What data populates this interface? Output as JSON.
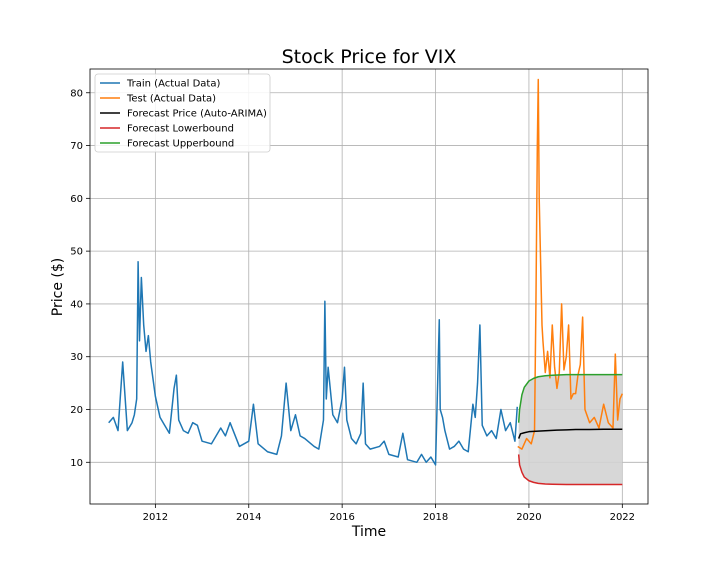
{
  "chart_data": {
    "type": "line",
    "title": "Stock Price for VIX",
    "xlabel": "Time",
    "ylabel": "Price ($)",
    "xlim": [
      2010.6,
      2022.55
    ],
    "ylim": [
      2.1,
      84.5
    ],
    "xticks": [
      2012,
      2014,
      2016,
      2018,
      2020,
      2022
    ],
    "yticks": [
      10,
      20,
      30,
      40,
      50,
      60,
      70,
      80
    ],
    "grid": true,
    "legend_position": "top-left",
    "series": [
      {
        "name": "Train (Actual Data)",
        "color": "#1f77b4",
        "style": "line",
        "x": [
          2011.0,
          2011.1,
          2011.2,
          2011.3,
          2011.4,
          2011.5,
          2011.55,
          2011.6,
          2011.63,
          2011.66,
          2011.7,
          2011.75,
          2011.8,
          2011.85,
          2011.9,
          2012.0,
          2012.1,
          2012.2,
          2012.3,
          2012.4,
          2012.45,
          2012.5,
          2012.6,
          2012.7,
          2012.8,
          2012.9,
          2013.0,
          2013.2,
          2013.4,
          2013.5,
          2013.6,
          2013.8,
          2014.0,
          2014.1,
          2014.2,
          2014.4,
          2014.6,
          2014.7,
          2014.8,
          2014.9,
          2015.0,
          2015.1,
          2015.2,
          2015.4,
          2015.5,
          2015.6,
          2015.63,
          2015.66,
          2015.7,
          2015.8,
          2015.9,
          2016.0,
          2016.05,
          2016.1,
          2016.2,
          2016.3,
          2016.4,
          2016.45,
          2016.5,
          2016.6,
          2016.8,
          2016.9,
          2017.0,
          2017.2,
          2017.3,
          2017.4,
          2017.6,
          2017.7,
          2017.8,
          2017.9,
          2018.0,
          2018.08,
          2018.1,
          2018.15,
          2018.2,
          2018.3,
          2018.4,
          2018.5,
          2018.6,
          2018.7,
          2018.8,
          2018.85,
          2018.9,
          2018.95,
          2019.0,
          2019.1,
          2019.2,
          2019.3,
          2019.4,
          2019.5,
          2019.6,
          2019.7,
          2019.75
        ],
        "y": [
          17.5,
          18.5,
          16.0,
          29.0,
          16.0,
          17.5,
          19.0,
          22.0,
          48.0,
          33.0,
          45.0,
          36.0,
          31.0,
          34.0,
          29.0,
          22.5,
          18.5,
          17.0,
          15.5,
          24.0,
          26.5,
          18.0,
          16.0,
          15.5,
          17.5,
          17.0,
          14.0,
          13.5,
          16.5,
          15.0,
          17.5,
          13.0,
          14.0,
          21.0,
          13.5,
          12.0,
          11.5,
          15.0,
          25.0,
          16.0,
          19.0,
          15.0,
          14.5,
          13.0,
          12.5,
          18.0,
          40.5,
          22.0,
          28.0,
          19.0,
          17.5,
          22.0,
          28.0,
          18.0,
          14.5,
          13.5,
          15.5,
          25.0,
          13.5,
          12.5,
          13.0,
          14.0,
          11.5,
          11.0,
          15.5,
          10.5,
          10.0,
          11.5,
          10.0,
          11.0,
          9.5,
          37.0,
          20.0,
          18.5,
          16.0,
          12.5,
          13.0,
          14.0,
          12.5,
          12.0,
          21.0,
          18.5,
          25.0,
          36.0,
          17.0,
          15.0,
          16.0,
          14.5,
          20.0,
          16.0,
          17.5,
          14.0,
          20.5
        ]
      },
      {
        "name": "Test (Actual Data)",
        "color": "#ff7f0e",
        "style": "line",
        "x": [
          2019.76,
          2019.85,
          2019.95,
          2020.05,
          2020.12,
          2020.15,
          2020.18,
          2020.2,
          2020.22,
          2020.25,
          2020.28,
          2020.3,
          2020.35,
          2020.4,
          2020.45,
          2020.5,
          2020.55,
          2020.6,
          2020.65,
          2020.7,
          2020.75,
          2020.8,
          2020.85,
          2020.9,
          2020.95,
          2021.0,
          2021.05,
          2021.1,
          2021.15,
          2021.2,
          2021.3,
          2021.4,
          2021.5,
          2021.6,
          2021.7,
          2021.8,
          2021.85,
          2021.9,
          2021.95,
          2022.0
        ],
        "y": [
          13.0,
          12.5,
          14.5,
          13.5,
          16.0,
          40.0,
          70.0,
          82.5,
          60.0,
          48.0,
          36.0,
          33.0,
          27.0,
          31.0,
          26.0,
          36.0,
          28.0,
          24.0,
          27.0,
          40.0,
          27.5,
          30.0,
          36.0,
          22.0,
          23.0,
          23.0,
          26.5,
          28.5,
          37.5,
          20.0,
          17.5,
          18.5,
          16.5,
          21.0,
          17.5,
          16.5,
          30.5,
          18.0,
          22.0,
          23.0
        ]
      },
      {
        "name": "Forecast Price (Auto-ARIMA)",
        "color": "#000000",
        "style": "line",
        "x": [
          2019.78,
          2019.82,
          2019.9,
          2020.0,
          2020.2,
          2020.4,
          2020.6,
          2020.8,
          2021.0,
          2021.3,
          2021.6,
          2022.0
        ],
        "y": [
          14.5,
          15.4,
          15.6,
          15.8,
          15.9,
          16.0,
          16.1,
          16.15,
          16.2,
          16.2,
          16.25,
          16.25
        ]
      },
      {
        "name": "Forecast Lowerbound",
        "color": "#d62728",
        "style": "line",
        "x": [
          2019.78,
          2019.8,
          2019.85,
          2019.9,
          2020.0,
          2020.1,
          2020.2,
          2020.35,
          2020.5,
          2020.8,
          2021.2,
          2021.6,
          2022.0
        ],
        "y": [
          11.5,
          9.5,
          8.1,
          7.2,
          6.5,
          6.2,
          6.0,
          5.9,
          5.85,
          5.8,
          5.8,
          5.8,
          5.8
        ]
      },
      {
        "name": "Forecast Upperbound",
        "color": "#2ca02c",
        "style": "line",
        "x": [
          2019.78,
          2019.8,
          2019.85,
          2019.9,
          2020.0,
          2020.1,
          2020.2,
          2020.35,
          2020.5,
          2020.8,
          2021.2,
          2021.6,
          2022.0
        ],
        "y": [
          17.5,
          20.0,
          22.8,
          24.2,
          25.4,
          25.9,
          26.2,
          26.4,
          26.5,
          26.6,
          26.6,
          26.6,
          26.6
        ]
      }
    ],
    "confidence_band": {
      "color": "#d3d3d3",
      "between": [
        "Forecast Lowerbound",
        "Forecast Upperbound"
      ]
    }
  }
}
